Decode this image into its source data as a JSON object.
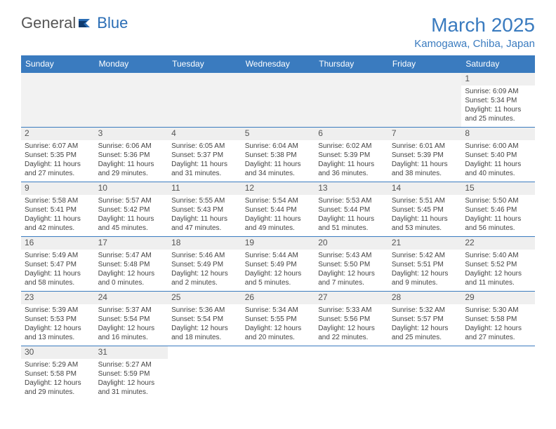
{
  "logo": {
    "text1": "General",
    "text2": "Blue"
  },
  "header": {
    "monthTitle": "March 2025",
    "location": "Kamogawa, Chiba, Japan"
  },
  "colors": {
    "accent": "#3a7bbf",
    "headerBg": "#3a7bbf",
    "headerFg": "#ffffff",
    "dayNumBg": "#efefef",
    "border": "#3a7bbf"
  },
  "weekdays": [
    "Sunday",
    "Monday",
    "Tuesday",
    "Wednesday",
    "Thursday",
    "Friday",
    "Saturday"
  ],
  "weeks": [
    [
      null,
      null,
      null,
      null,
      null,
      null,
      {
        "n": "1",
        "sr": "6:09 AM",
        "ss": "5:34 PM",
        "dl": "11 hours and 25 minutes."
      }
    ],
    [
      {
        "n": "2",
        "sr": "6:07 AM",
        "ss": "5:35 PM",
        "dl": "11 hours and 27 minutes."
      },
      {
        "n": "3",
        "sr": "6:06 AM",
        "ss": "5:36 PM",
        "dl": "11 hours and 29 minutes."
      },
      {
        "n": "4",
        "sr": "6:05 AM",
        "ss": "5:37 PM",
        "dl": "11 hours and 31 minutes."
      },
      {
        "n": "5",
        "sr": "6:04 AM",
        "ss": "5:38 PM",
        "dl": "11 hours and 34 minutes."
      },
      {
        "n": "6",
        "sr": "6:02 AM",
        "ss": "5:39 PM",
        "dl": "11 hours and 36 minutes."
      },
      {
        "n": "7",
        "sr": "6:01 AM",
        "ss": "5:39 PM",
        "dl": "11 hours and 38 minutes."
      },
      {
        "n": "8",
        "sr": "6:00 AM",
        "ss": "5:40 PM",
        "dl": "11 hours and 40 minutes."
      }
    ],
    [
      {
        "n": "9",
        "sr": "5:58 AM",
        "ss": "5:41 PM",
        "dl": "11 hours and 42 minutes."
      },
      {
        "n": "10",
        "sr": "5:57 AM",
        "ss": "5:42 PM",
        "dl": "11 hours and 45 minutes."
      },
      {
        "n": "11",
        "sr": "5:55 AM",
        "ss": "5:43 PM",
        "dl": "11 hours and 47 minutes."
      },
      {
        "n": "12",
        "sr": "5:54 AM",
        "ss": "5:44 PM",
        "dl": "11 hours and 49 minutes."
      },
      {
        "n": "13",
        "sr": "5:53 AM",
        "ss": "5:44 PM",
        "dl": "11 hours and 51 minutes."
      },
      {
        "n": "14",
        "sr": "5:51 AM",
        "ss": "5:45 PM",
        "dl": "11 hours and 53 minutes."
      },
      {
        "n": "15",
        "sr": "5:50 AM",
        "ss": "5:46 PM",
        "dl": "11 hours and 56 minutes."
      }
    ],
    [
      {
        "n": "16",
        "sr": "5:49 AM",
        "ss": "5:47 PM",
        "dl": "11 hours and 58 minutes."
      },
      {
        "n": "17",
        "sr": "5:47 AM",
        "ss": "5:48 PM",
        "dl": "12 hours and 0 minutes."
      },
      {
        "n": "18",
        "sr": "5:46 AM",
        "ss": "5:49 PM",
        "dl": "12 hours and 2 minutes."
      },
      {
        "n": "19",
        "sr": "5:44 AM",
        "ss": "5:49 PM",
        "dl": "12 hours and 5 minutes."
      },
      {
        "n": "20",
        "sr": "5:43 AM",
        "ss": "5:50 PM",
        "dl": "12 hours and 7 minutes."
      },
      {
        "n": "21",
        "sr": "5:42 AM",
        "ss": "5:51 PM",
        "dl": "12 hours and 9 minutes."
      },
      {
        "n": "22",
        "sr": "5:40 AM",
        "ss": "5:52 PM",
        "dl": "12 hours and 11 minutes."
      }
    ],
    [
      {
        "n": "23",
        "sr": "5:39 AM",
        "ss": "5:53 PM",
        "dl": "12 hours and 13 minutes."
      },
      {
        "n": "24",
        "sr": "5:37 AM",
        "ss": "5:54 PM",
        "dl": "12 hours and 16 minutes."
      },
      {
        "n": "25",
        "sr": "5:36 AM",
        "ss": "5:54 PM",
        "dl": "12 hours and 18 minutes."
      },
      {
        "n": "26",
        "sr": "5:34 AM",
        "ss": "5:55 PM",
        "dl": "12 hours and 20 minutes."
      },
      {
        "n": "27",
        "sr": "5:33 AM",
        "ss": "5:56 PM",
        "dl": "12 hours and 22 minutes."
      },
      {
        "n": "28",
        "sr": "5:32 AM",
        "ss": "5:57 PM",
        "dl": "12 hours and 25 minutes."
      },
      {
        "n": "29",
        "sr": "5:30 AM",
        "ss": "5:58 PM",
        "dl": "12 hours and 27 minutes."
      }
    ],
    [
      {
        "n": "30",
        "sr": "5:29 AM",
        "ss": "5:58 PM",
        "dl": "12 hours and 29 minutes."
      },
      {
        "n": "31",
        "sr": "5:27 AM",
        "ss": "5:59 PM",
        "dl": "12 hours and 31 minutes."
      },
      null,
      null,
      null,
      null,
      null
    ]
  ],
  "labels": {
    "sunrise": "Sunrise: ",
    "sunset": "Sunset: ",
    "daylight": "Daylight: "
  }
}
